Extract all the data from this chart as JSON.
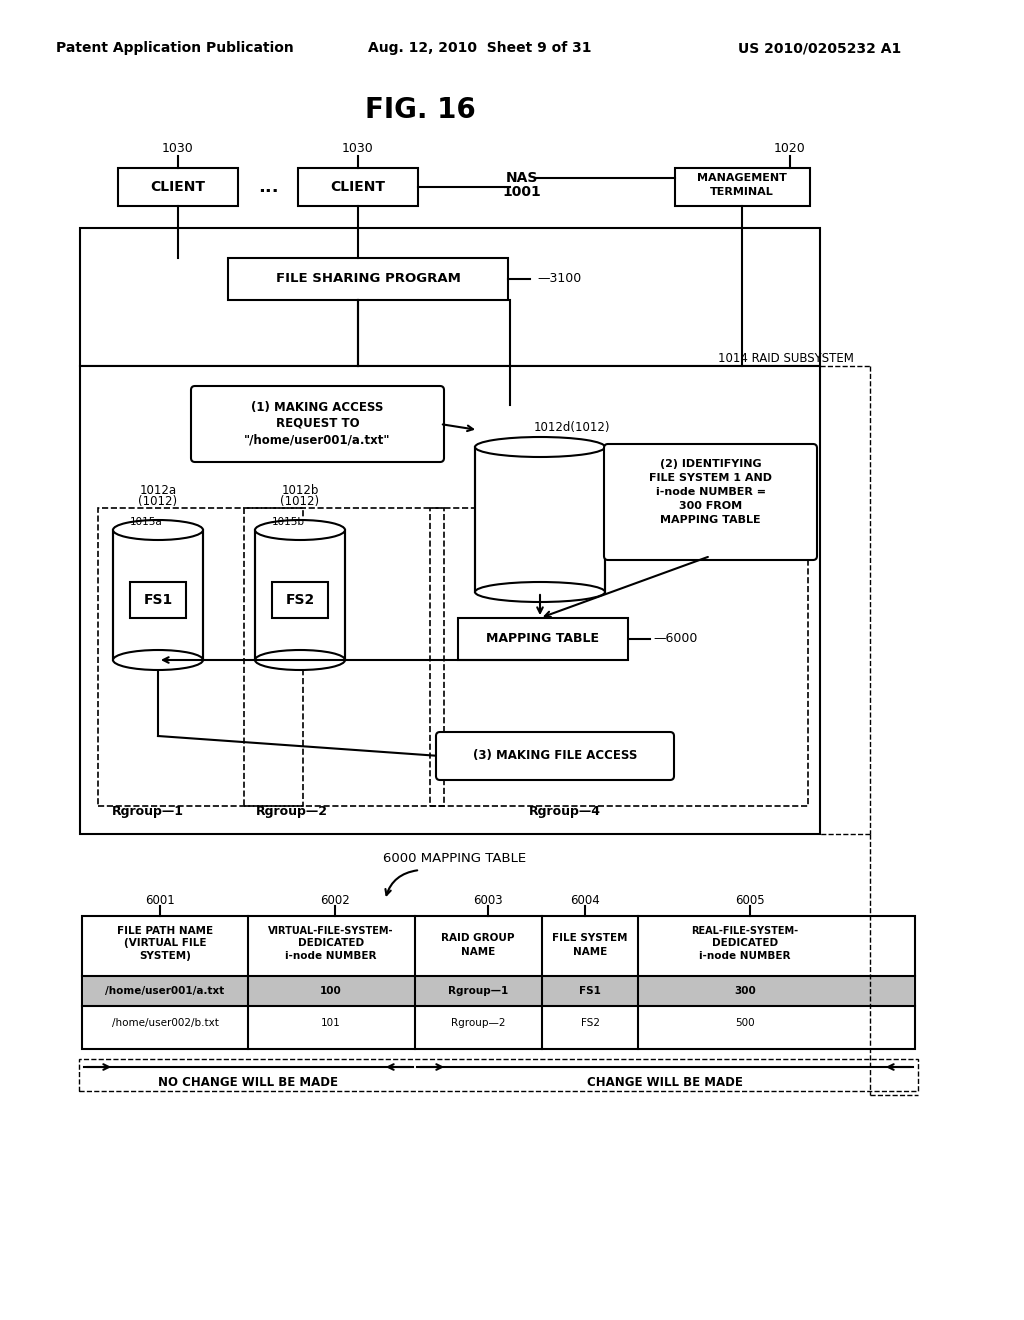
{
  "title": "FIG. 16",
  "header_left": "Patent Application Publication",
  "header_mid": "Aug. 12, 2010  Sheet 9 of 31",
  "header_right": "US 2010/0205232 A1",
  "bg_color": "#ffffff",
  "text_color": "#000000"
}
